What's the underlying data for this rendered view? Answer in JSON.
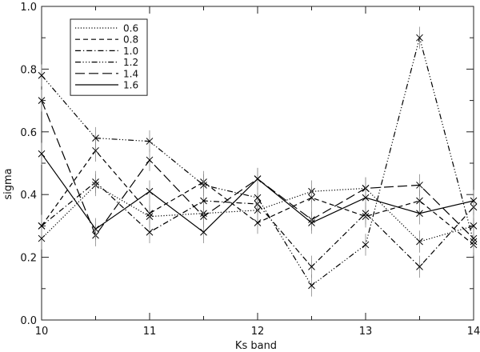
{
  "chart_data": {
    "type": "line",
    "xlabel": "Ks band",
    "ylabel": "sigma",
    "xlim": [
      10,
      14
    ],
    "ylim": [
      0.0,
      1.0
    ],
    "x_ticks": [
      "10",
      "11",
      "12",
      "13",
      "14"
    ],
    "y_ticks": [
      "0.0",
      "0.2",
      "0.4",
      "0.6",
      "0.8",
      "1.0"
    ],
    "x": [
      10.0,
      10.5,
      11.0,
      11.5,
      12.0,
      12.5,
      13.0,
      13.5,
      14.0
    ],
    "legend_position": "top-left",
    "marker": "x",
    "error_bars": true,
    "series": [
      {
        "name": "0.6",
        "dash": "dotted",
        "values": [
          0.26,
          0.43,
          0.33,
          0.34,
          0.35,
          0.41,
          0.42,
          0.25,
          0.3
        ]
      },
      {
        "name": "0.8",
        "dash": "dashed",
        "values": [
          0.3,
          0.54,
          0.34,
          0.44,
          0.31,
          0.39,
          0.33,
          0.38,
          0.24
        ]
      },
      {
        "name": "1.0",
        "dash": "dash-dot",
        "values": [
          0.3,
          0.44,
          0.28,
          0.38,
          0.37,
          0.17,
          0.34,
          0.17,
          0.36
        ]
      },
      {
        "name": "1.2",
        "dash": "dash-dot-dot-dot",
        "values": [
          0.78,
          0.58,
          0.57,
          0.43,
          0.39,
          0.11,
          0.24,
          0.9,
          0.25
        ]
      },
      {
        "name": "1.4",
        "dash": "long-dash",
        "values": [
          0.7,
          0.27,
          0.51,
          0.33,
          0.45,
          0.32,
          0.42,
          0.43,
          0.26
        ]
      },
      {
        "name": "1.6",
        "dash": "solid",
        "values": [
          0.53,
          0.29,
          0.41,
          0.28,
          0.45,
          0.31,
          0.39,
          0.34,
          0.38
        ]
      }
    ],
    "error": 0.035,
    "colors": {
      "line": "#000000",
      "axis": "#222222",
      "error": "#888888"
    }
  }
}
